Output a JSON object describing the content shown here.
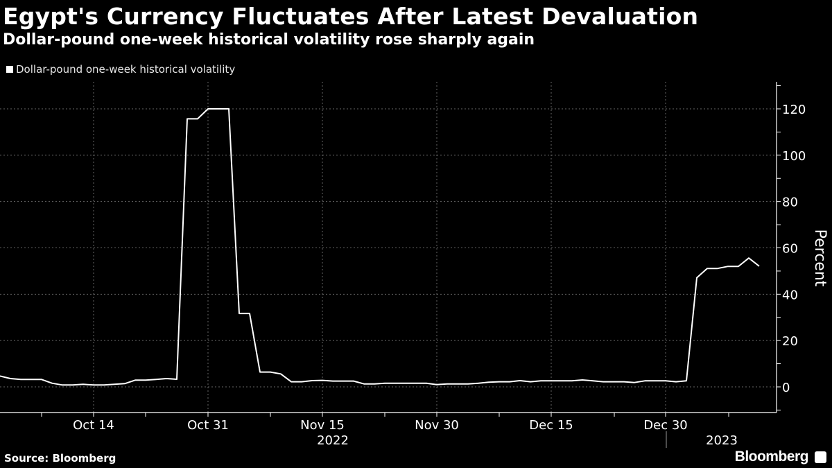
{
  "header": {
    "title": "Egypt's Currency Fluctuates After Latest Devaluation",
    "subtitle": "Dollar-pound one-week historical volatility rose sharply again"
  },
  "footer": {
    "source": "Source: Bloomberg",
    "brand": "Bloomberg",
    "brand_icon": "bloomberg-chart-icon"
  },
  "colors": {
    "background": "#000000",
    "line": "#ffffff",
    "grid": "#666666"
  },
  "chart_data": {
    "type": "line",
    "title": "Egypt's Currency Fluctuates After Latest Devaluation",
    "subtitle": "Dollar-pound one-week historical volatility rose sharply again",
    "ylabel": "Percent",
    "xlabel": "",
    "ylim": [
      -10,
      131
    ],
    "yticks": [
      0,
      20,
      40,
      60,
      80,
      100,
      120
    ],
    "xtick_labels": [
      {
        "date": "2022-10-14",
        "label": "Oct 14"
      },
      {
        "date": "2022-10-31",
        "label": "Oct 31"
      },
      {
        "date": "2022-11-15",
        "label": "Nov 15"
      },
      {
        "date": "2022-11-30",
        "label": "Nov 30"
      },
      {
        "date": "2022-12-15",
        "label": "Dec 15"
      },
      {
        "date": "2022-12-30",
        "label": "Dec 30"
      }
    ],
    "year_labels": [
      {
        "label": "2022",
        "after": "2022-11-15"
      },
      {
        "label": "2023",
        "after": "2023-01-05"
      }
    ],
    "grid": true,
    "legend": "top-left",
    "series": [
      {
        "name": "Dollar-pound one-week historical volatility",
        "x": [
          "2022-10-03",
          "2022-10-04",
          "2022-10-05",
          "2022-10-06",
          "2022-10-07",
          "2022-10-10",
          "2022-10-11",
          "2022-10-12",
          "2022-10-13",
          "2022-10-14",
          "2022-10-17",
          "2022-10-18",
          "2022-10-19",
          "2022-10-20",
          "2022-10-21",
          "2022-10-24",
          "2022-10-25",
          "2022-10-26",
          "2022-10-27",
          "2022-10-28",
          "2022-10-31",
          "2022-11-01",
          "2022-11-02",
          "2022-11-03",
          "2022-11-04",
          "2022-11-07",
          "2022-11-08",
          "2022-11-09",
          "2022-11-10",
          "2022-11-11",
          "2022-11-14",
          "2022-11-15",
          "2022-11-16",
          "2022-11-17",
          "2022-11-18",
          "2022-11-21",
          "2022-11-22",
          "2022-11-23",
          "2022-11-24",
          "2022-11-25",
          "2022-11-28",
          "2022-11-29",
          "2022-11-30",
          "2022-12-01",
          "2022-12-02",
          "2022-12-05",
          "2022-12-06",
          "2022-12-07",
          "2022-12-08",
          "2022-12-09",
          "2022-12-12",
          "2022-12-13",
          "2022-12-14",
          "2022-12-15",
          "2022-12-16",
          "2022-12-19",
          "2022-12-20",
          "2022-12-21",
          "2022-12-22",
          "2022-12-23",
          "2022-12-26",
          "2022-12-27",
          "2022-12-28",
          "2022-12-29",
          "2022-12-30",
          "2023-01-02",
          "2023-01-03",
          "2023-01-04",
          "2023-01-05",
          "2023-01-06",
          "2023-01-09",
          "2023-01-10",
          "2023-01-11",
          "2023-01-12"
        ],
        "values": [
          4.7,
          3.6,
          3.2,
          3.2,
          3.2,
          1.6,
          0.8,
          0.8,
          1.1,
          0.8,
          0.8,
          1.1,
          1.4,
          2.9,
          2.9,
          3.2,
          3.6,
          3.3,
          115.7,
          115.7,
          120,
          120,
          120,
          31.7,
          31.7,
          6.4,
          6.4,
          5.6,
          2.2,
          2.2,
          2.7,
          2.8,
          2.5,
          2.5,
          2.5,
          1.3,
          1.3,
          1.6,
          1.6,
          1.6,
          1.6,
          1.6,
          1.0,
          1.3,
          1.3,
          1.3,
          1.6,
          2.0,
          2.2,
          2.2,
          2.7,
          2.2,
          2.6,
          2.6,
          2.6,
          2.6,
          3.0,
          2.6,
          2.2,
          2.2,
          2.2,
          1.9,
          2.6,
          2.6,
          2.6,
          2.2,
          2.6,
          47.1,
          51.1,
          51.1,
          52.0,
          52.0,
          55.6,
          52.1
        ]
      }
    ]
  }
}
